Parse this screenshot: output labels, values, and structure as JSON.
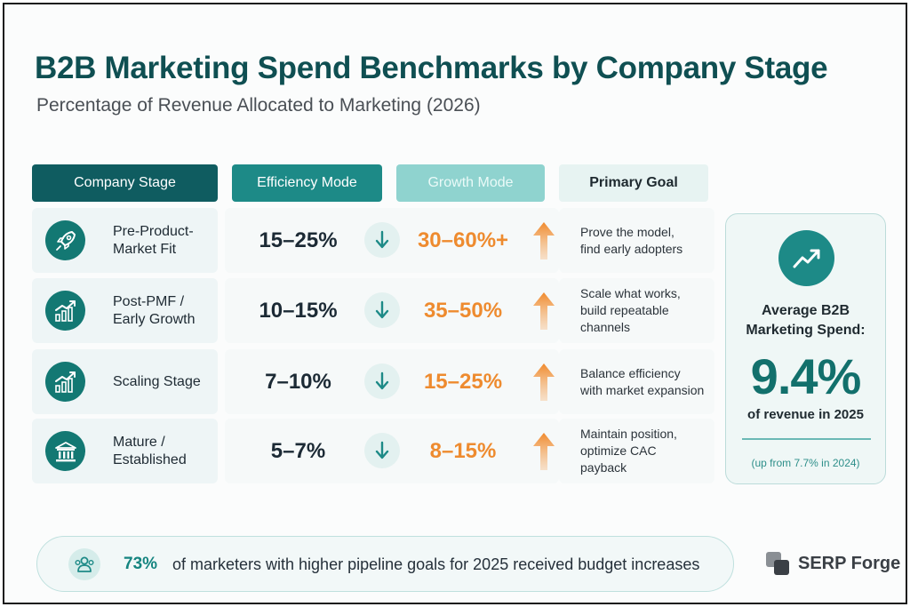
{
  "header": {
    "title": "B2B Marketing Spend Benchmarks by Company Stage",
    "subtitle": "Percentage of Revenue Allocated to Marketing (2026)"
  },
  "columns": {
    "stage": "Company Stage",
    "efficiency": "Efficiency Mode",
    "growth": "Growth Mode",
    "goal": "Primary Goal"
  },
  "rows": [
    {
      "stage_line1": "Pre-Product-",
      "stage_line2": "Market Fit",
      "icon": "rocket-icon",
      "efficiency": "15–25%",
      "growth": "30–60%+",
      "goal_line1": "Prove the model,",
      "goal_line2": "find early adopters",
      "goal_line3": ""
    },
    {
      "stage_line1": "Post-PMF /",
      "stage_line2": "Early Growth",
      "icon": "growth-chart-icon",
      "efficiency": "10–15%",
      "growth": "35–50%",
      "goal_line1": "Scale what works,",
      "goal_line2": "build repeatable",
      "goal_line3": "channels"
    },
    {
      "stage_line1": "Scaling Stage",
      "stage_line2": "",
      "icon": "growth-chart-icon",
      "efficiency": "7–10%",
      "growth": "15–25%",
      "goal_line1": "Balance efficiency",
      "goal_line2": "with market expansion",
      "goal_line3": ""
    },
    {
      "stage_line1": "Mature /",
      "stage_line2": "Established",
      "icon": "institution-icon",
      "efficiency": "5–7%",
      "growth": "8–15%",
      "goal_line1": "Maintain position,",
      "goal_line2": "optimize CAC",
      "goal_line3": "payback"
    }
  ],
  "average": {
    "label_line1": "Average B2B",
    "label_line2": "Marketing Spend:",
    "value": "9.4%",
    "sub": "of revenue in 2025",
    "note": "(up from 7.7% in 2024)"
  },
  "banner": {
    "pct": "73%",
    "text": "of marketers with higher pipeline goals for 2025 received budget increases"
  },
  "brand": {
    "name": "SERP Forge"
  },
  "colors": {
    "dark_teal": "#0f5c60",
    "teal": "#1d8a87",
    "light_teal": "#8fd3cf",
    "orange": "#ee8b2f"
  },
  "chart_data": {
    "type": "table",
    "title": "B2B Marketing Spend Benchmarks by Company Stage",
    "subtitle": "Percentage of Revenue Allocated to Marketing (2026)",
    "columns": [
      "Company Stage",
      "Efficiency Mode",
      "Growth Mode",
      "Primary Goal"
    ],
    "categories": [
      "Pre-Product-Market Fit",
      "Post-PMF / Early Growth",
      "Scaling Stage",
      "Mature / Established"
    ],
    "series": [
      {
        "name": "Efficiency Mode",
        "ranges": [
          [
            15,
            25
          ],
          [
            10,
            15
          ],
          [
            7,
            10
          ],
          [
            5,
            7
          ]
        ],
        "labels": [
          "15–25%",
          "10–15%",
          "7–10%",
          "5–7%"
        ]
      },
      {
        "name": "Growth Mode",
        "ranges": [
          [
            30,
            60
          ],
          [
            35,
            50
          ],
          [
            15,
            25
          ],
          [
            8,
            15
          ]
        ],
        "labels": [
          "30–60%+",
          "35–50%",
          "15–25%",
          "8–15%"
        ]
      }
    ],
    "average_2025": 9.4,
    "average_2024": 7.7,
    "budget_increase_share": 73
  }
}
